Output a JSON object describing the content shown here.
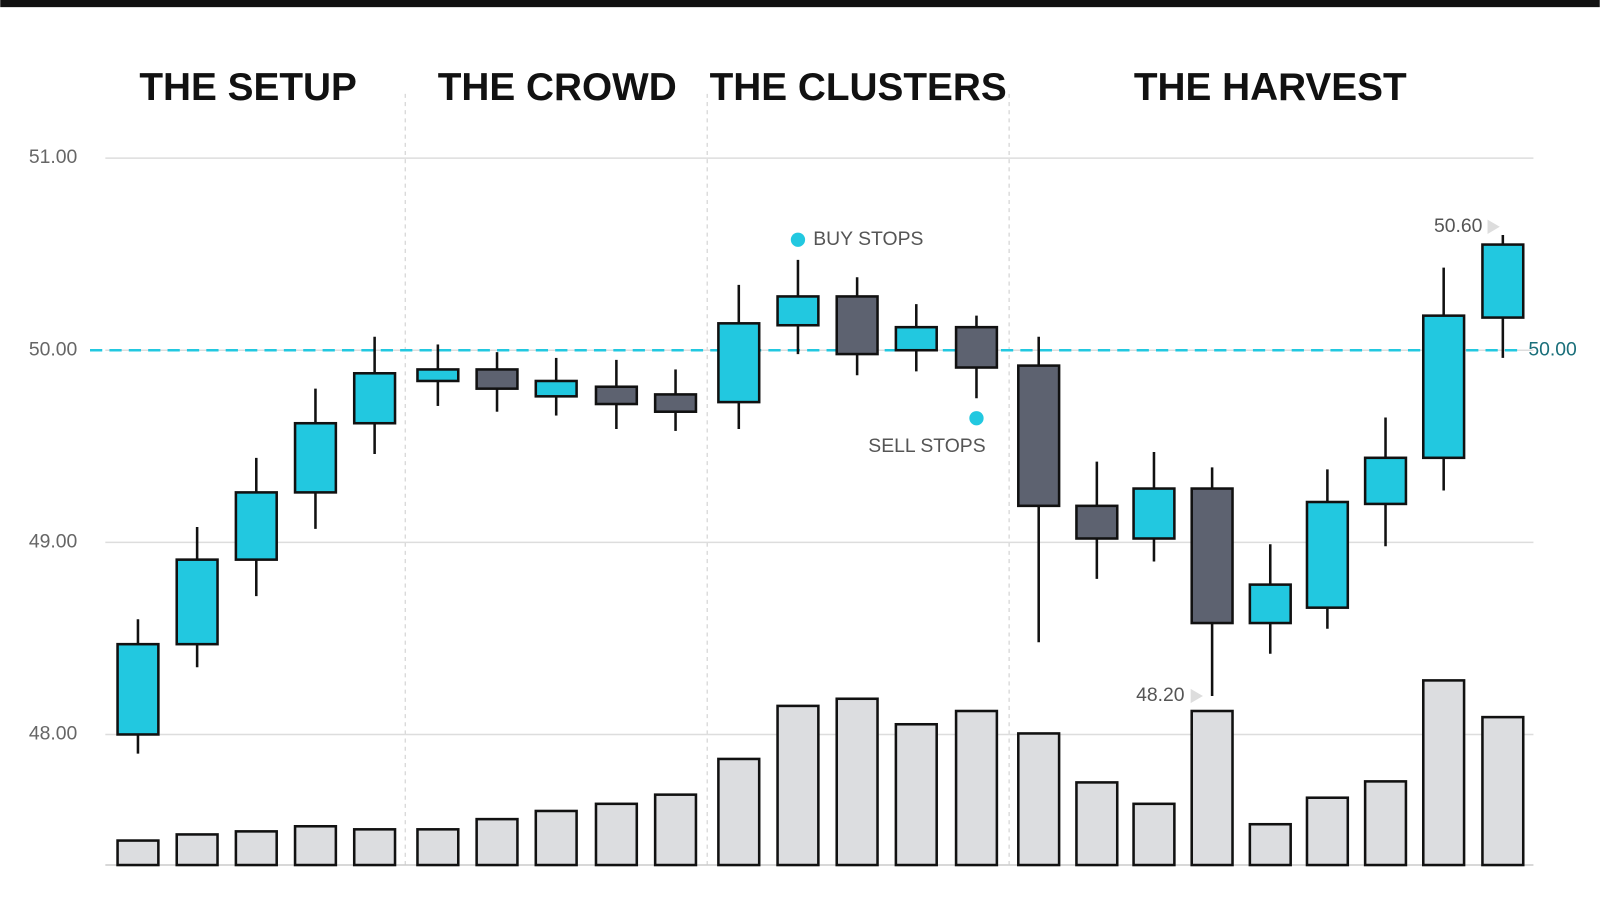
{
  "chart_data": {
    "type": "candlestick",
    "sections": [
      "THE SETUP",
      "THE CROWD",
      "THE CLUSTERS",
      "THE HARVEST"
    ],
    "ylim": [
      48,
      51
    ],
    "yticks": [
      {
        "value": 51,
        "label": "51.00"
      },
      {
        "value": 50,
        "label": "50.00"
      },
      {
        "value": 49,
        "label": "49.00"
      },
      {
        "value": 48,
        "label": "48.00"
      }
    ],
    "grid": true,
    "up_color": "#22c8e0",
    "down_color": "#5d6270",
    "volume_color": "#dcdde0",
    "level": {
      "value": 50,
      "label": "50.00",
      "color": "#22c8e0"
    },
    "candles": [
      {
        "open": 48.0,
        "high": 48.6,
        "low": 47.9,
        "close": 48.47
      },
      {
        "open": 48.47,
        "high": 49.08,
        "low": 48.35,
        "close": 48.91
      },
      {
        "open": 48.91,
        "high": 49.44,
        "low": 48.72,
        "close": 49.26
      },
      {
        "open": 49.26,
        "high": 49.8,
        "low": 49.07,
        "close": 49.62
      },
      {
        "open": 49.62,
        "high": 50.07,
        "low": 49.46,
        "close": 49.88
      },
      {
        "open": 49.84,
        "high": 50.03,
        "low": 49.71,
        "close": 49.9
      },
      {
        "open": 49.9,
        "high": 49.99,
        "low": 49.68,
        "close": 49.8
      },
      {
        "open": 49.76,
        "high": 49.96,
        "low": 49.66,
        "close": 49.84
      },
      {
        "open": 49.81,
        "high": 49.95,
        "low": 49.59,
        "close": 49.72
      },
      {
        "open": 49.77,
        "high": 49.9,
        "low": 49.58,
        "close": 49.68
      },
      {
        "open": 49.73,
        "high": 50.34,
        "low": 49.59,
        "close": 50.14
      },
      {
        "open": 50.13,
        "high": 50.47,
        "low": 49.98,
        "close": 50.28
      },
      {
        "open": 50.28,
        "high": 50.38,
        "low": 49.87,
        "close": 49.98
      },
      {
        "open": 50.0,
        "high": 50.24,
        "low": 49.89,
        "close": 50.12
      },
      {
        "open": 50.12,
        "high": 50.18,
        "low": 49.75,
        "close": 49.91
      },
      {
        "open": 49.92,
        "high": 50.07,
        "low": 48.48,
        "close": 49.19
      },
      {
        "open": 49.19,
        "high": 49.42,
        "low": 48.81,
        "close": 49.02
      },
      {
        "open": 49.02,
        "high": 49.47,
        "low": 48.9,
        "close": 49.28
      },
      {
        "open": 49.28,
        "high": 49.39,
        "low": 48.2,
        "close": 48.58
      },
      {
        "open": 48.58,
        "high": 48.99,
        "low": 48.42,
        "close": 48.78
      },
      {
        "open": 48.66,
        "high": 49.38,
        "low": 48.55,
        "close": 49.21
      },
      {
        "open": 49.2,
        "high": 49.65,
        "low": 48.98,
        "close": 49.44
      },
      {
        "open": 49.44,
        "high": 50.43,
        "low": 49.27,
        "close": 50.18
      },
      {
        "open": 50.17,
        "high": 50.6,
        "low": 49.96,
        "close": 50.55
      }
    ],
    "volume_ylim": [
      0,
      200
    ],
    "volume": [
      24,
      30,
      33,
      38,
      35,
      35,
      45,
      53,
      60,
      69,
      104,
      156,
      163,
      138,
      151,
      129,
      81,
      60,
      151,
      40,
      66,
      82,
      181,
      145
    ],
    "annotations": {
      "buy_stops": "BUY STOPS",
      "sell_stops": "SELL STOPS",
      "high_label": {
        "value": 50.6,
        "label": "50.60"
      },
      "low_label": {
        "value": 48.2,
        "label": "48.20"
      }
    }
  }
}
